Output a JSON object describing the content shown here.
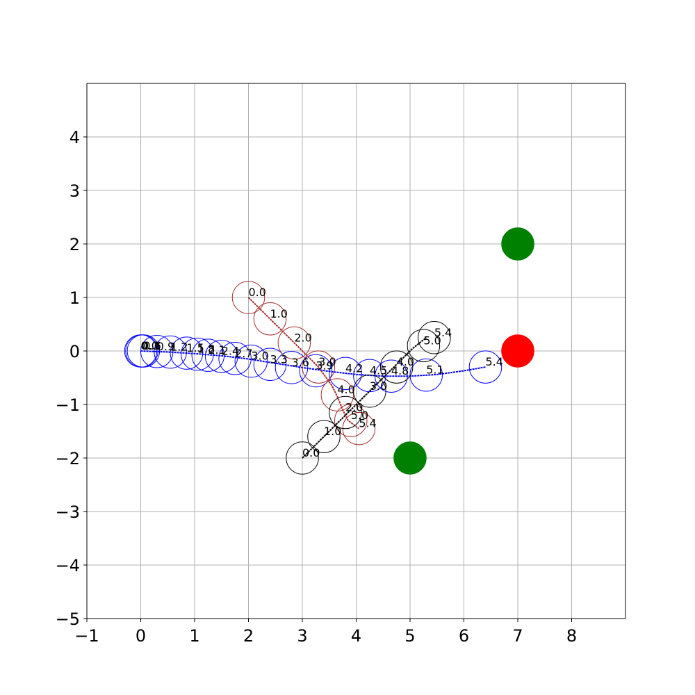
{
  "chart_data": {
    "type": "scatter",
    "title": "",
    "xlabel": "",
    "ylabel": "",
    "xlim": [
      -1,
      9
    ],
    "ylim": [
      -5,
      5
    ],
    "xticks": [
      -1,
      0,
      1,
      2,
      3,
      4,
      5,
      6,
      7,
      8
    ],
    "yticks": [
      -5,
      -4,
      -3,
      -2,
      -1,
      0,
      1,
      2,
      3,
      4
    ],
    "xtick_labels": [
      "−1",
      "0",
      "1",
      "2",
      "3",
      "4",
      "5",
      "6",
      "7",
      "8"
    ],
    "ytick_labels": [
      "−5",
      "−4",
      "−3",
      "−2",
      "−1",
      "0",
      "1",
      "2",
      "3",
      "4"
    ],
    "grid": true,
    "agent_radius": 0.3,
    "agents": [
      {
        "color": "#0000ff",
        "path": [
          [
            0,
            0
          ],
          [
            0.5,
            -0.02
          ],
          [
            1,
            -0.05
          ],
          [
            1.5,
            -0.09
          ],
          [
            2,
            -0.15
          ],
          [
            2.5,
            -0.23
          ],
          [
            3,
            -0.31
          ],
          [
            3.5,
            -0.38
          ],
          [
            4,
            -0.44
          ],
          [
            4.5,
            -0.47
          ],
          [
            5,
            -0.47
          ],
          [
            5.5,
            -0.44
          ],
          [
            6,
            -0.37
          ],
          [
            6.4,
            -0.3
          ]
        ],
        "circles": [
          {
            "x": 0,
            "y": 0,
            "t": "0.0"
          },
          {
            "x": 0.02,
            "y": 0,
            "t": "0.3"
          },
          {
            "x": 0.05,
            "y": 0,
            "t": "0.6"
          },
          {
            "x": 0.3,
            "y": -0.01,
            "t": "0.9"
          },
          {
            "x": 0.55,
            "y": -0.02,
            "t": "1.2"
          },
          {
            "x": 0.85,
            "y": -0.04,
            "t": "1.5"
          },
          {
            "x": 1.05,
            "y": -0.06,
            "t": "1.8"
          },
          {
            "x": 1.25,
            "y": -0.08,
            "t": "2.1"
          },
          {
            "x": 1.5,
            "y": -0.1,
            "t": "2.4"
          },
          {
            "x": 1.75,
            "y": -0.14,
            "t": "2.7"
          },
          {
            "x": 2.05,
            "y": -0.19,
            "t": "3.0"
          },
          {
            "x": 2.4,
            "y": -0.25,
            "t": "3.3"
          },
          {
            "x": 2.8,
            "y": -0.31,
            "t": "3.6"
          },
          {
            "x": 3.25,
            "y": -0.37,
            "t": "3.9"
          },
          {
            "x": 3.8,
            "y": -0.42,
            "t": "4.2"
          },
          {
            "x": 4.25,
            "y": -0.46,
            "t": "4.5"
          },
          {
            "x": 4.65,
            "y": -0.47,
            "t": "4.8"
          },
          {
            "x": 5.3,
            "y": -0.45,
            "t": "5.1"
          },
          {
            "x": 6.4,
            "y": -0.3,
            "t": "5.4"
          }
        ]
      },
      {
        "color": "#a52a2a",
        "path": [
          [
            2,
            1
          ],
          [
            2.4,
            0.6
          ],
          [
            2.85,
            0.15
          ],
          [
            3.3,
            -0.3
          ],
          [
            3.55,
            -0.65
          ],
          [
            3.65,
            -0.85
          ],
          [
            3.75,
            -1.1
          ],
          [
            3.85,
            -1.3
          ],
          [
            4.05,
            -1.45
          ]
        ],
        "circles": [
          {
            "x": 2,
            "y": 1,
            "t": "0.0"
          },
          {
            "x": 2.4,
            "y": 0.6,
            "t": "1.0"
          },
          {
            "x": 2.85,
            "y": 0.15,
            "t": "2.0"
          },
          {
            "x": 3.3,
            "y": -0.3,
            "t": "3.0"
          },
          {
            "x": 3.65,
            "y": -0.82,
            "t": "4.0"
          },
          {
            "x": 3.9,
            "y": -1.3,
            "t": "5.0"
          },
          {
            "x": 4.05,
            "y": -1.45,
            "t": "5.4"
          }
        ]
      },
      {
        "color": "#000000",
        "path": [
          [
            3,
            -2
          ],
          [
            3.4,
            -1.6
          ],
          [
            3.8,
            -1.2
          ],
          [
            4.25,
            -0.75
          ],
          [
            4.7,
            -0.3
          ],
          [
            5.05,
            0.05
          ],
          [
            5.3,
            0.25
          ]
        ],
        "circles": [
          {
            "x": 3,
            "y": -2,
            "t": "0.0"
          },
          {
            "x": 3.4,
            "y": -1.6,
            "t": "1.0"
          },
          {
            "x": 3.8,
            "y": -1.15,
            "t": "2.0"
          },
          {
            "x": 4.25,
            "y": -0.75,
            "t": "3.0"
          },
          {
            "x": 4.75,
            "y": -0.3,
            "t": "4.0"
          },
          {
            "x": 5.25,
            "y": 0.1,
            "t": "5.0"
          },
          {
            "x": 5.45,
            "y": 0.25,
            "t": "5.4"
          }
        ]
      }
    ],
    "goals": [
      {
        "x": 7,
        "y": 2,
        "color": "#008000"
      },
      {
        "x": 7,
        "y": 0,
        "color": "#ff0000"
      },
      {
        "x": 5,
        "y": -2,
        "color": "#008000"
      }
    ]
  }
}
